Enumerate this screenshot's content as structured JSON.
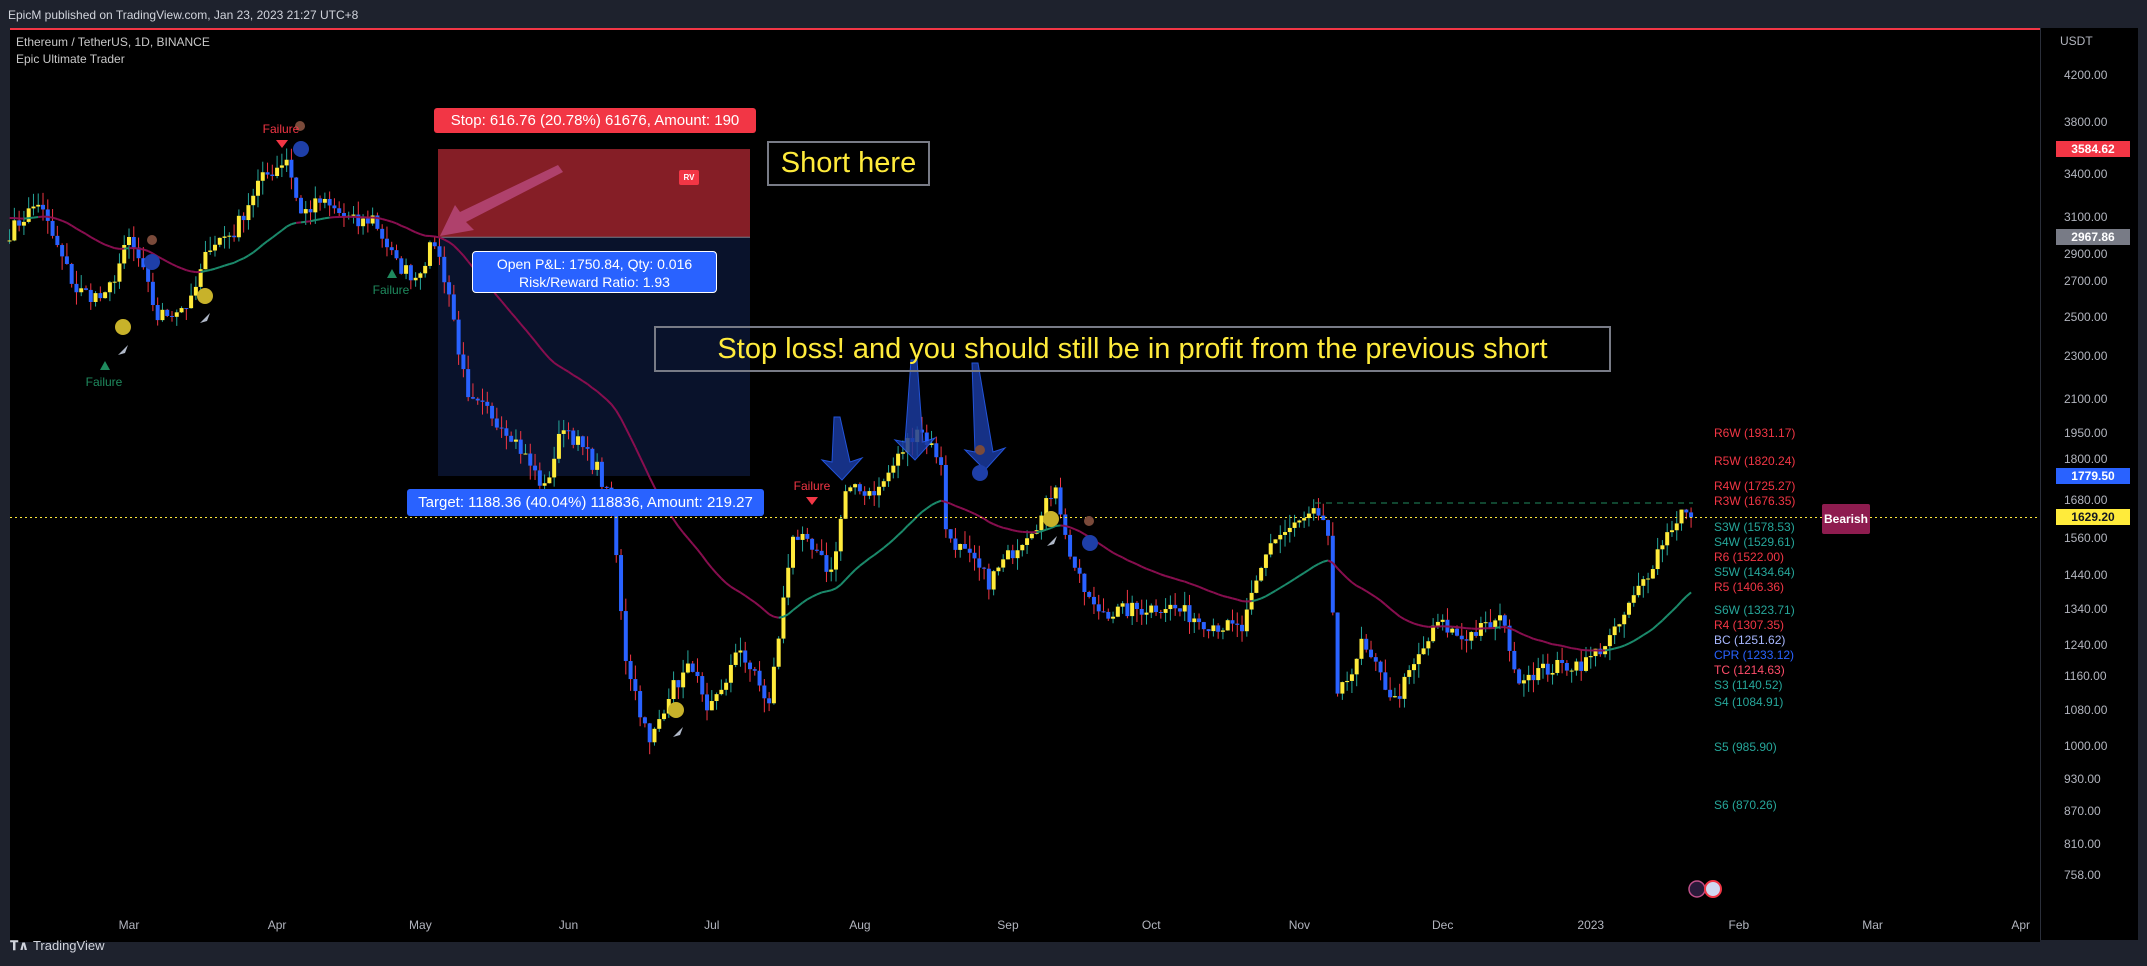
{
  "header": {
    "published": "EpicM published on TradingView.com, Jan 23, 2023 21:27 UTC+8"
  },
  "chart_title": {
    "symbol": "Ethereum / TetherUS, 1D, BINANCE",
    "indicator": "Epic Ultimate Trader"
  },
  "footer": {
    "brand": "TradingView"
  },
  "colors": {
    "up": "#ffeb3b",
    "down": "#2962ff",
    "wick_up": "#26a69a",
    "wick_down": "#f23645",
    "ma_bear": "#880e4f",
    "ma_bull": "#1b8a6b",
    "stop": "#f23645",
    "target": "#2962ff"
  },
  "chart_data": {
    "type": "candlestick",
    "yscale": "log",
    "ylim": [
      720,
      4400
    ],
    "xlim": [
      "2022-02-04",
      "2023-04-10"
    ],
    "price_axis": {
      "unit": "USDT",
      "ticks": [
        "4200.00",
        "3800.00",
        "3400.00",
        "3100.00",
        "2900.00",
        "2700.00",
        "2500.00",
        "2300.00",
        "2100.00",
        "1950.00",
        "1800.00",
        "1680.00",
        "1560.00",
        "1440.00",
        "1340.00",
        "1240.00",
        "1160.00",
        "1080.00",
        "1000.00",
        "930.00",
        "870.00",
        "810.00",
        "758.00"
      ]
    },
    "price_tags": [
      {
        "value": "3584.62",
        "color": "#f23645",
        "text": "#fff"
      },
      {
        "value": "2967.86",
        "color": "#787b86",
        "text": "#fff"
      },
      {
        "value": "1779.50",
        "color": "#2962ff",
        "text": "#fff"
      },
      {
        "value": "1629.20",
        "color": "#ffeb3b",
        "text": "#131722"
      }
    ],
    "time_axis": [
      {
        "label": "Mar",
        "date": "2022-03-01"
      },
      {
        "label": "Apr",
        "date": "2022-04-01"
      },
      {
        "label": "May",
        "date": "2022-05-01"
      },
      {
        "label": "Jun",
        "date": "2022-06-01"
      },
      {
        "label": "Jul",
        "date": "2022-07-01"
      },
      {
        "label": "Aug",
        "date": "2022-08-01"
      },
      {
        "label": "Sep",
        "date": "2022-09-01"
      },
      {
        "label": "Oct",
        "date": "2022-10-01"
      },
      {
        "label": "Nov",
        "date": "2022-11-01"
      },
      {
        "label": "Dec",
        "date": "2022-12-01"
      },
      {
        "label": "2023",
        "date": "2023-01-01"
      },
      {
        "label": "Feb",
        "date": "2023-02-01"
      },
      {
        "label": "Mar",
        "date": "2023-03-01"
      },
      {
        "label": "Apr",
        "date": "2023-04-01"
      }
    ],
    "close_path": [
      [
        "2022-02-04",
        3000
      ],
      [
        "2022-02-10",
        3200
      ],
      [
        "2022-02-14",
        2900
      ],
      [
        "2022-02-18",
        2650
      ],
      [
        "2022-02-24",
        2600
      ],
      [
        "2022-03-01",
        2950
      ],
      [
        "2022-03-03",
        2830
      ],
      [
        "2022-03-07",
        2500
      ],
      [
        "2022-03-14",
        2580
      ],
      [
        "2022-03-18",
        2930
      ],
      [
        "2022-03-23",
        3000
      ],
      [
        "2022-03-28",
        3330
      ],
      [
        "2022-04-03",
        3520
      ],
      [
        "2022-04-06",
        3120
      ],
      [
        "2022-04-10",
        3200
      ],
      [
        "2022-04-18",
        3050
      ],
      [
        "2022-04-21",
        3100
      ],
      [
        "2022-04-26",
        2800
      ],
      [
        "2022-04-30",
        2730
      ],
      [
        "2022-05-04",
        2940
      ],
      [
        "2022-05-07",
        2630
      ],
      [
        "2022-05-11",
        2080
      ],
      [
        "2022-05-15",
        2050
      ],
      [
        "2022-05-20",
        1950
      ],
      [
        "2022-05-27",
        1730
      ],
      [
        "2022-05-31",
        1990
      ],
      [
        "2022-06-07",
        1810
      ],
      [
        "2022-06-10",
        1660
      ],
      [
        "2022-06-13",
        1210
      ],
      [
        "2022-06-18",
        1000
      ],
      [
        "2022-06-22",
        1120
      ],
      [
        "2022-06-27",
        1190
      ],
      [
        "2022-06-30",
        1060
      ],
      [
        "2022-07-07",
        1230
      ],
      [
        "2022-07-13",
        1090
      ],
      [
        "2022-07-18",
        1580
      ],
      [
        "2022-07-26",
        1450
      ],
      [
        "2022-07-29",
        1720
      ],
      [
        "2022-08-05",
        1730
      ],
      [
        "2022-08-13",
        1980
      ],
      [
        "2022-08-18",
        1840
      ],
      [
        "2022-08-19",
        1580
      ],
      [
        "2022-08-28",
        1420
      ],
      [
        "2022-09-05",
        1580
      ],
      [
        "2022-09-08",
        1630
      ],
      [
        "2022-09-11",
        1760
      ],
      [
        "2022-09-13",
        1560
      ],
      [
        "2022-09-16",
        1420
      ],
      [
        "2022-09-19",
        1340
      ],
      [
        "2022-09-23",
        1330
      ],
      [
        "2022-10-04",
        1350
      ],
      [
        "2022-10-13",
        1300
      ],
      [
        "2022-10-20",
        1280
      ],
      [
        "2022-10-26",
        1550
      ],
      [
        "2022-11-04",
        1640
      ],
      [
        "2022-11-07",
        1570
      ],
      [
        "2022-11-08",
        1330
      ],
      [
        "2022-11-09",
        1100
      ],
      [
        "2022-11-14",
        1240
      ],
      [
        "2022-11-21",
        1100
      ],
      [
        "2022-11-30",
        1300
      ],
      [
        "2022-12-05",
        1260
      ],
      [
        "2022-12-14",
        1310
      ],
      [
        "2022-12-16",
        1160
      ],
      [
        "2022-12-28",
        1190
      ],
      [
        "2022-12-31",
        1195
      ],
      [
        "2023-01-06",
        1270
      ],
      [
        "2023-01-13",
        1450
      ],
      [
        "2023-01-16",
        1550
      ],
      [
        "2023-01-20",
        1650
      ],
      [
        "2023-01-22",
        1629.2
      ]
    ],
    "last_price": 1629.2,
    "pivots": [
      {
        "label": "R6W (1931.17)",
        "value": 1931.17,
        "color": "#f23645"
      },
      {
        "label": "R5W (1820.24)",
        "value": 1820.24,
        "color": "#f23645"
      },
      {
        "label": "R4W (1725.27)",
        "value": 1725.27,
        "color": "#f23645"
      },
      {
        "label": "R3W (1676.35)",
        "value": 1676.35,
        "color": "#f23645"
      },
      {
        "label": "S3W (1578.53)",
        "value": 1578.53,
        "color": "#26a69a"
      },
      {
        "label": "S4W (1529.61)",
        "value": 1529.61,
        "color": "#26a69a"
      },
      {
        "label": "R6 (1522.00)",
        "value": 1522.0,
        "color": "#f23645"
      },
      {
        "label": "S5W (1434.64)",
        "value": 1434.64,
        "color": "#26a69a"
      },
      {
        "label": "R5 (1406.36)",
        "value": 1406.36,
        "color": "#f23645"
      },
      {
        "label": "S6W (1323.71)",
        "value": 1323.71,
        "color": "#26a69a"
      },
      {
        "label": "R4 (1307.35)",
        "value": 1307.35,
        "color": "#f23645"
      },
      {
        "label": "BC (1251.62)",
        "value": 1251.62,
        "color": "#a8b8ff"
      },
      {
        "label": "CPR (1233.12)",
        "value": 1233.12,
        "color": "#2962ff"
      },
      {
        "label": "TC (1214.63)",
        "value": 1214.63,
        "color": "#ff4d6a"
      },
      {
        "label": "S3 (1140.52)",
        "value": 1140.52,
        "color": "#26a69a"
      },
      {
        "label": "S4 (1084.91)",
        "value": 1084.91,
        "color": "#26a69a"
      },
      {
        "label": "S5 (985.90)",
        "value": 985.9,
        "color": "#26a69a"
      },
      {
        "label": "S6 (870.26)",
        "value": 870.26,
        "color": "#26a69a"
      }
    ],
    "position": {
      "type": "short",
      "entry": 2967.86,
      "stop": 3584.62,
      "target": 1779.5,
      "start": "2022-05-05",
      "end": "2022-07-10"
    }
  },
  "annotations": {
    "stop_label": "Stop: 616.76 (20.78%) 61676, Amount: 190",
    "target_label": "Target: 1188.36 (40.04%) 118836, Amount: 219.27",
    "pnl_line1": "Open P&L: 1750.84, Qty: 0.016",
    "pnl_line2": "Risk/Reward Ratio: 1.93",
    "short_here": "Short here",
    "stop_loss_note": "Stop loss! and you should still be in profit from the previous short",
    "rv_badge": "RV",
    "bearish_tag": "Bearish",
    "failure": "Failure"
  }
}
